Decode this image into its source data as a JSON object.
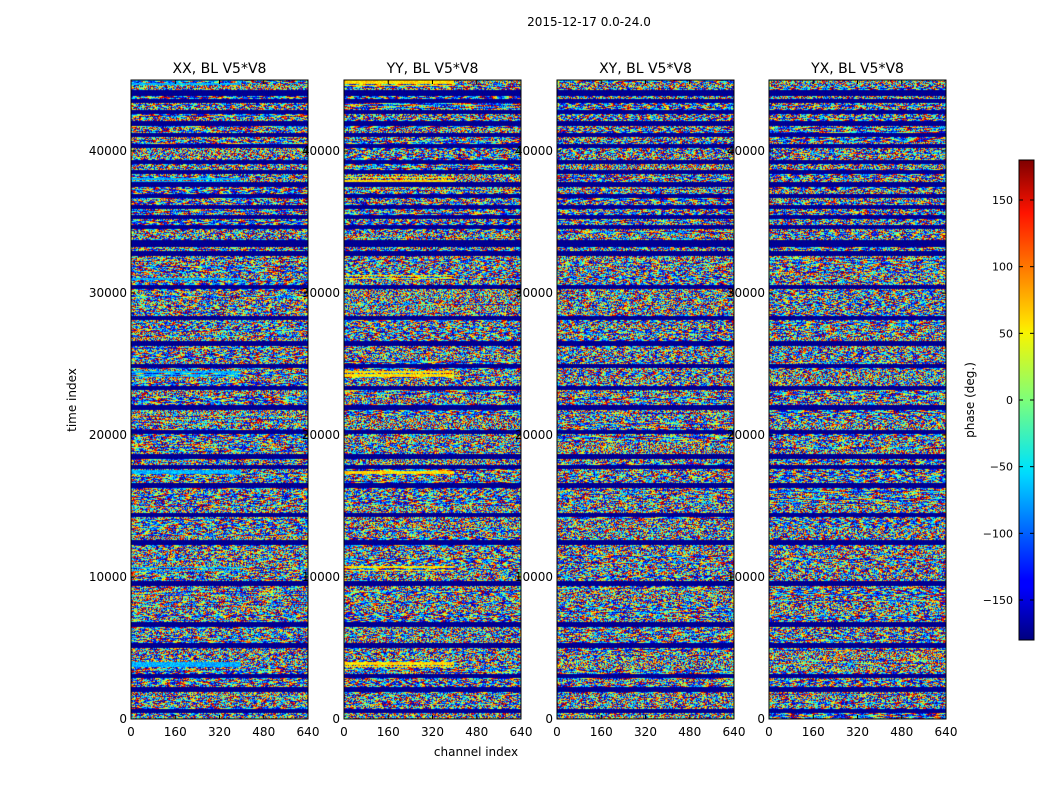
{
  "figure_title": "2015-12-17 0.0-24.0",
  "chart_data": {
    "type": "heatmap",
    "suptitle": "2015-12-17 0.0-24.0",
    "xlabel": "channel index",
    "ylabel": "time index",
    "xlim": [
      0,
      640
    ],
    "ylim": [
      0,
      45000
    ],
    "xticks": [
      0,
      160,
      320,
      480,
      640
    ],
    "yticks": [
      0,
      10000,
      20000,
      30000,
      40000
    ],
    "xtick_labels": [
      "0",
      "160",
      "320",
      "480",
      "640"
    ],
    "ytick_labels": [
      "0",
      "10000",
      "20000",
      "30000",
      "40000"
    ],
    "panels": [
      {
        "title": "XX, BL V5*V8",
        "pol": "XX"
      },
      {
        "title": "YY, BL V5*V8",
        "pol": "YY"
      },
      {
        "title": "XY, BL V5*V8",
        "pol": "XY"
      },
      {
        "title": "YX, BL V5*V8",
        "pol": "YX"
      }
    ],
    "colorbar": {
      "label": "phase (deg.)",
      "vmin": -180,
      "vmax": 180,
      "ticks": [
        150,
        100,
        50,
        0,
        -50,
        -100,
        -150
      ],
      "tick_labels": [
        "150",
        "100",
        "50",
        "0",
        "−50",
        "−100",
        "−150"
      ],
      "colormap": "jet"
    },
    "blank_time_bands": [
      [
        500,
        700
      ],
      [
        2000,
        2200
      ],
      [
        3000,
        3150
      ],
      [
        5100,
        5300
      ],
      [
        6600,
        6800
      ],
      [
        9500,
        9650
      ],
      [
        12350,
        12550
      ],
      [
        14300,
        14450
      ],
      [
        16400,
        16600
      ],
      [
        17700,
        17850
      ],
      [
        18400,
        18650
      ],
      [
        20150,
        20350
      ],
      [
        21900,
        22050
      ],
      [
        23300,
        23450
      ],
      [
        24800,
        24950
      ],
      [
        26400,
        26600
      ],
      [
        28200,
        28350
      ],
      [
        30400,
        30550
      ],
      [
        32700,
        32900
      ],
      [
        33350,
        33700
      ],
      [
        34600,
        34750
      ],
      [
        35300,
        35450
      ],
      [
        36000,
        36150
      ],
      [
        36800,
        36950
      ],
      [
        37600,
        37750
      ],
      [
        38500,
        38650
      ],
      [
        39200,
        39350
      ],
      [
        40300,
        40450
      ],
      [
        41100,
        41250
      ],
      [
        41900,
        42050
      ],
      [
        42700,
        42850
      ],
      [
        43500,
        43650
      ],
      [
        44000,
        44250
      ]
    ]
  }
}
